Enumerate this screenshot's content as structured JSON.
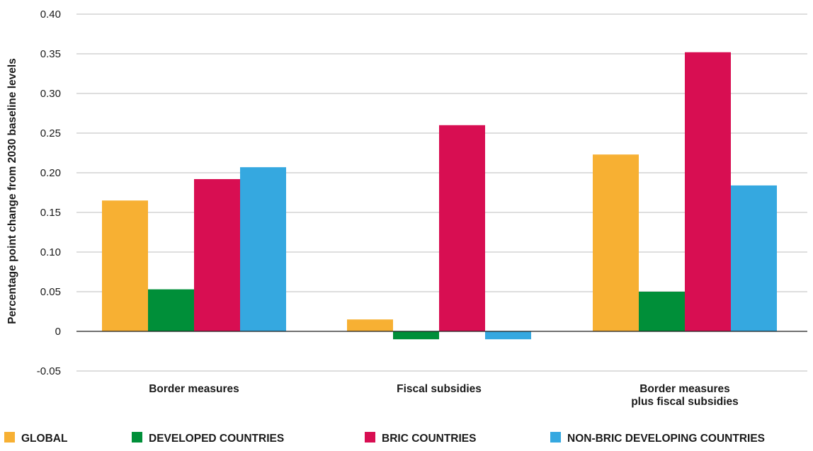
{
  "chart_data": {
    "type": "bar",
    "ylabel": "Percentage point change from 2030 baseline levels",
    "ylim": [
      -0.05,
      0.4
    ],
    "yticks": [
      {
        "value": 0.4,
        "label": "0.40"
      },
      {
        "value": 0.35,
        "label": "0.35"
      },
      {
        "value": 0.3,
        "label": "0.30"
      },
      {
        "value": 0.25,
        "label": "0.25"
      },
      {
        "value": 0.2,
        "label": "0.20"
      },
      {
        "value": 0.15,
        "label": "0.15"
      },
      {
        "value": 0.1,
        "label": "0.10"
      },
      {
        "value": 0.05,
        "label": "0.05"
      },
      {
        "value": 0,
        "label": "0"
      },
      {
        "value": -0.05,
        "label": "-0.05"
      }
    ],
    "grid": true,
    "legend_placement": "bottom",
    "categories": [
      [
        "Border measures"
      ],
      [
        "Fiscal subsidies"
      ],
      [
        "Border measures",
        "plus fiscal subsidies"
      ]
    ],
    "series": [
      {
        "name": "GLOBAL",
        "color": "#F7B033",
        "values": [
          0.165,
          0.015,
          0.223
        ]
      },
      {
        "name": "DEVELOPED COUNTRIES",
        "color": "#008F39",
        "values": [
          0.053,
          -0.01,
          0.05
        ]
      },
      {
        "name": "BRIC COUNTRIES",
        "color": "#D80E52",
        "values": [
          0.192,
          0.26,
          0.352
        ]
      },
      {
        "name": "NON-BRIC DEVELOPING COUNTRIES",
        "color": "#35A8E0",
        "values": [
          0.207,
          -0.01,
          0.184
        ]
      }
    ]
  }
}
